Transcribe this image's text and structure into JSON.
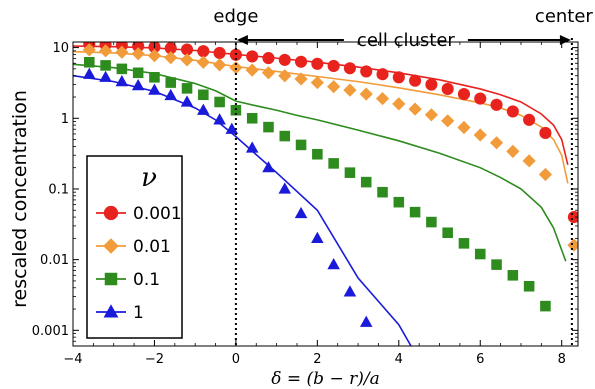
{
  "chart_data": {
    "type": "line",
    "title": "",
    "xlabel": "δ = (b − r)/a",
    "ylabel": "rescaled concentration",
    "xlim": [
      -4,
      8.4
    ],
    "ylim": [
      0.0006,
      12
    ],
    "y_scale": "log",
    "grid": false,
    "x_ticks": [
      -4,
      -2,
      0,
      2,
      4,
      6,
      8
    ],
    "x_tick_labels": [
      "−4",
      "−2",
      "0",
      "2",
      "4",
      "6",
      "8"
    ],
    "y_ticks": [
      10,
      1,
      0.1,
      0.01,
      0.001
    ],
    "y_tick_labels": [
      "10",
      "1",
      "0.1",
      "0.01",
      "0.001"
    ],
    "annotations": {
      "edge_label": "edge",
      "edge_x": 0,
      "center_label": "center",
      "center_x": 8.25,
      "cluster_label": "cell cluster"
    },
    "legend": {
      "title": "ν",
      "position": "bottom-left"
    },
    "series": [
      {
        "name": "0.001",
        "color": "#e8231e",
        "marker": "circle",
        "points": {
          "x": [
            -3.6,
            -3.2,
            -2.8,
            -2.4,
            -2.0,
            -1.6,
            -1.2,
            -0.8,
            -0.4,
            0.0,
            0.4,
            0.8,
            1.2,
            1.6,
            2.0,
            2.4,
            2.8,
            3.2,
            3.6,
            4.0,
            4.4,
            4.8,
            5.2,
            5.6,
            6.0,
            6.4,
            6.8,
            7.2,
            7.6,
            8.3
          ],
          "y": [
            11.2,
            11.0,
            10.8,
            10.5,
            10.2,
            9.8,
            9.4,
            8.9,
            8.4,
            7.9,
            7.5,
            7.1,
            6.7,
            6.3,
            5.9,
            5.5,
            5.1,
            4.6,
            4.2,
            3.8,
            3.4,
            3.0,
            2.6,
            2.2,
            1.9,
            1.55,
            1.25,
            0.95,
            0.62,
            0.04
          ]
        },
        "curve": {
          "x": [
            -4,
            -3,
            -2,
            -1,
            0,
            1,
            2,
            3,
            4,
            5,
            6,
            6.5,
            7,
            7.5,
            7.8,
            8.0,
            8.15
          ],
          "y": [
            10.5,
            10.3,
            9.9,
            9.1,
            8.0,
            7.1,
            6.2,
            5.3,
            4.4,
            3.5,
            2.6,
            2.15,
            1.7,
            1.15,
            0.8,
            0.5,
            0.22
          ]
        }
      },
      {
        "name": "0.01",
        "color": "#f29b3a",
        "marker": "diamond",
        "points": {
          "x": [
            -3.6,
            -3.2,
            -2.8,
            -2.4,
            -2.0,
            -1.6,
            -1.2,
            -0.8,
            -0.4,
            0.0,
            0.4,
            0.8,
            1.2,
            1.6,
            2.0,
            2.4,
            2.8,
            3.2,
            3.6,
            4.0,
            4.4,
            4.8,
            5.2,
            5.6,
            6.0,
            6.4,
            6.8,
            7.2,
            7.6,
            8.3
          ],
          "y": [
            9.3,
            9.0,
            8.6,
            8.2,
            7.7,
            7.2,
            6.7,
            6.2,
            5.7,
            5.2,
            4.8,
            4.4,
            4.0,
            3.6,
            3.2,
            2.8,
            2.5,
            2.2,
            1.9,
            1.6,
            1.35,
            1.12,
            0.92,
            0.74,
            0.58,
            0.45,
            0.34,
            0.25,
            0.16,
            0.016
          ]
        },
        "curve": {
          "x": [
            -4,
            -3,
            -2,
            -1,
            0,
            1,
            2,
            3,
            4,
            5,
            6,
            6.5,
            7,
            7.5,
            7.8,
            8.0,
            8.15
          ],
          "y": [
            8.8,
            8.4,
            7.7,
            6.6,
            5.4,
            4.6,
            3.9,
            3.3,
            2.7,
            2.15,
            1.65,
            1.4,
            1.1,
            0.75,
            0.5,
            0.3,
            0.12
          ]
        }
      },
      {
        "name": "0.1",
        "color": "#2e8b1e",
        "marker": "square",
        "points": {
          "x": [
            -3.6,
            -3.2,
            -2.8,
            -2.4,
            -2.0,
            -1.6,
            -1.2,
            -0.8,
            -0.4,
            0.0,
            0.4,
            0.8,
            1.2,
            1.6,
            2.0,
            2.4,
            2.8,
            3.2,
            3.6,
            4.0,
            4.4,
            4.8,
            5.2,
            5.6,
            6.0,
            6.4,
            6.8,
            7.2,
            7.6
          ],
          "y": [
            6.2,
            5.6,
            5.0,
            4.4,
            3.8,
            3.2,
            2.65,
            2.15,
            1.7,
            1.3,
            1.0,
            0.75,
            0.56,
            0.42,
            0.31,
            0.23,
            0.17,
            0.125,
            0.09,
            0.065,
            0.047,
            0.034,
            0.024,
            0.017,
            0.012,
            0.0085,
            0.006,
            0.0042,
            0.0022
          ]
        },
        "curve": {
          "x": [
            -4,
            -3,
            -2,
            -1,
            -0.5,
            0,
            0.5,
            1,
            1.5,
            2,
            3,
            4,
            5,
            6,
            6.5,
            7,
            7.5,
            7.8,
            8.1
          ],
          "y": [
            5.8,
            5.2,
            4.3,
            3.1,
            2.45,
            1.75,
            1.5,
            1.3,
            1.1,
            0.95,
            0.68,
            0.48,
            0.32,
            0.2,
            0.145,
            0.1,
            0.055,
            0.028,
            0.0095
          ]
        }
      },
      {
        "name": "1",
        "color": "#1a1adb",
        "marker": "triangle",
        "points": {
          "x": [
            -3.6,
            -3.2,
            -2.8,
            -2.4,
            -2.0,
            -1.6,
            -1.2,
            -0.8,
            -0.4,
            -0.1,
            0.4,
            0.8,
            1.2,
            1.6,
            2.0,
            2.4,
            2.8,
            3.2
          ],
          "y": [
            4.2,
            3.8,
            3.3,
            2.9,
            2.5,
            2.1,
            1.7,
            1.3,
            0.95,
            0.7,
            0.38,
            0.2,
            0.1,
            0.045,
            0.02,
            0.0085,
            0.0035,
            0.0013
          ]
        },
        "curve": {
          "x": [
            -4,
            -3,
            -2,
            -1,
            -0.5,
            0,
            1,
            2,
            3,
            4,
            4.3
          ],
          "y": [
            4.0,
            3.3,
            2.4,
            1.4,
            0.95,
            0.55,
            0.17,
            0.05,
            0.0055,
            0.0012,
            0.0006
          ]
        }
      }
    ]
  }
}
